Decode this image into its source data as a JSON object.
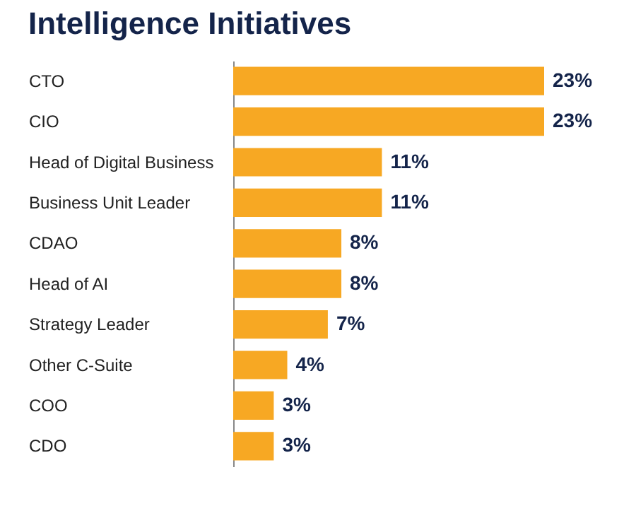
{
  "chart_data": {
    "type": "bar",
    "orientation": "horizontal",
    "title": "Intelligence Initiatives",
    "categories": [
      "CTO",
      "CIO",
      "Head of Digital Business",
      "Business Unit Leader",
      "CDAO",
      "Head of AI",
      "Strategy Leader",
      "Other C-Suite",
      "COO",
      "CDO"
    ],
    "values": [
      23,
      23,
      11,
      11,
      8,
      8,
      7,
      4,
      3,
      3
    ],
    "value_labels": [
      "23%",
      "23%",
      "11%",
      "11%",
      "8%",
      "8%",
      "7%",
      "4%",
      "3%",
      "3%"
    ],
    "color": "#f7a823"
  }
}
